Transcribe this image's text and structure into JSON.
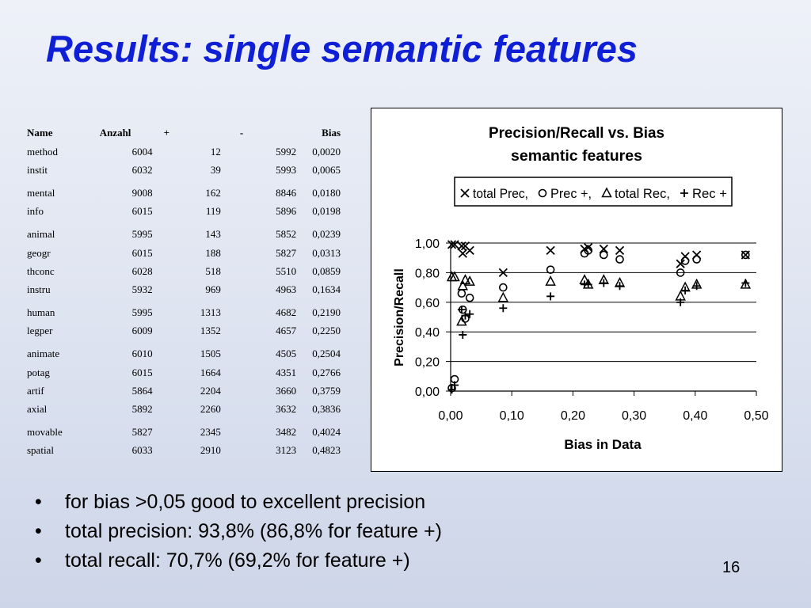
{
  "slide": {
    "title": "Results: single semantic features",
    "page_number": "16"
  },
  "table": {
    "headers": [
      "Name",
      "Anzahl",
      "+",
      "-",
      "Bias"
    ],
    "rows": [
      {
        "name": "method",
        "anzahl": "6004",
        "plus": "12",
        "minus": "5992",
        "bias": "0,0020"
      },
      {
        "name": "instit",
        "anzahl": "6032",
        "plus": "39",
        "minus": "5993",
        "bias": "0,0065"
      },
      {
        "name": "mental",
        "anzahl": "9008",
        "plus": "162",
        "minus": "8846",
        "bias": "0,0180"
      },
      {
        "name": "info",
        "anzahl": "6015",
        "plus": "119",
        "minus": "5896",
        "bias": "0,0198"
      },
      {
        "name": "animal",
        "anzahl": "5995",
        "plus": "143",
        "minus": "5852",
        "bias": "0,0239"
      },
      {
        "name": "geogr",
        "anzahl": "6015",
        "plus": "188",
        "minus": "5827",
        "bias": "0,0313"
      },
      {
        "name": "thconc",
        "anzahl": "6028",
        "plus": "518",
        "minus": "5510",
        "bias": "0,0859"
      },
      {
        "name": "instru",
        "anzahl": "5932",
        "plus": "969",
        "minus": "4963",
        "bias": "0,1634"
      },
      {
        "name": "human",
        "anzahl": "5995",
        "plus": "1313",
        "minus": "4682",
        "bias": "0,2190"
      },
      {
        "name": "legper",
        "anzahl": "6009",
        "plus": "1352",
        "minus": "4657",
        "bias": "0,2250"
      },
      {
        "name": "animate",
        "anzahl": "6010",
        "plus": "1505",
        "minus": "4505",
        "bias": "0,2504"
      },
      {
        "name": "potag",
        "anzahl": "6015",
        "plus": "1664",
        "minus": "4351",
        "bias": "0,2766"
      },
      {
        "name": "artif",
        "anzahl": "5864",
        "plus": "2204",
        "minus": "3660",
        "bias": "0,3759"
      },
      {
        "name": "axial",
        "anzahl": "5892",
        "plus": "2260",
        "minus": "3632",
        "bias": "0,3836"
      },
      {
        "name": "movable",
        "anzahl": "5827",
        "plus": "2345",
        "minus": "3482",
        "bias": "0,4024"
      },
      {
        "name": "spatial",
        "anzahl": "6033",
        "plus": "2910",
        "minus": "3123",
        "bias": "0,4823"
      }
    ]
  },
  "bullets": [
    "for bias >0,05 good to excellent precision",
    "total precision: 93,8% (86,8% for feature +)",
    "total recall:  70,7% (69,2% for feature +)"
  ],
  "chart_data": {
    "type": "scatter",
    "title": "Precision/Recall vs. Bias",
    "subtitle": "semantic features",
    "xlabel": "Bias in Data",
    "ylabel": "Precision/Recall",
    "xlim": [
      0,
      0.5
    ],
    "ylim": [
      0,
      1
    ],
    "x_ticks": [
      "0,00",
      "0,10",
      "0,20",
      "0,30",
      "0,40",
      "0,50"
    ],
    "y_ticks": [
      "0,00",
      "0,20",
      "0,40",
      "0,60",
      "0,80",
      "1,00"
    ],
    "grid": "horizontal",
    "legend_position": "top",
    "series": [
      {
        "name": "total Prec,",
        "marker": "x",
        "x": [
          0.002,
          0.0065,
          0.018,
          0.0198,
          0.0239,
          0.0313,
          0.0859,
          0.1634,
          0.219,
          0.225,
          0.2504,
          0.2766,
          0.3759,
          0.3836,
          0.4024,
          0.4823
        ],
        "y": [
          0.99,
          0.99,
          0.98,
          0.93,
          0.98,
          0.95,
          0.8,
          0.95,
          0.96,
          0.97,
          0.96,
          0.95,
          0.86,
          0.91,
          0.92,
          0.92
        ]
      },
      {
        "name": "Prec +,",
        "marker": "o",
        "x": [
          0.002,
          0.0065,
          0.018,
          0.0198,
          0.0239,
          0.0313,
          0.0859,
          0.1634,
          0.219,
          0.225,
          0.2504,
          0.2766,
          0.3759,
          0.3836,
          0.4024,
          0.4823
        ],
        "y": [
          0.02,
          0.08,
          0.66,
          0.55,
          0.49,
          0.63,
          0.7,
          0.82,
          0.93,
          0.95,
          0.92,
          0.89,
          0.8,
          0.88,
          0.89,
          0.92
        ]
      },
      {
        "name": "total Rec,",
        "marker": "triangle",
        "x": [
          0.002,
          0.0065,
          0.018,
          0.0198,
          0.0239,
          0.0313,
          0.0859,
          0.1634,
          0.219,
          0.225,
          0.2504,
          0.2766,
          0.3759,
          0.3836,
          0.4024,
          0.4823
        ],
        "y": [
          0.77,
          0.77,
          0.47,
          0.71,
          0.75,
          0.74,
          0.63,
          0.74,
          0.75,
          0.72,
          0.75,
          0.73,
          0.64,
          0.7,
          0.72,
          0.72
        ]
      },
      {
        "name": "Rec +",
        "marker": "plus",
        "x": [
          0.002,
          0.0065,
          0.018,
          0.0198,
          0.0239,
          0.0313,
          0.0859,
          0.1634,
          0.219,
          0.225,
          0.2504,
          0.2766,
          0.3759,
          0.3836,
          0.4024,
          0.4823
        ],
        "y": [
          0.01,
          0.04,
          0.55,
          0.38,
          0.51,
          0.52,
          0.56,
          0.64,
          0.72,
          0.72,
          0.73,
          0.71,
          0.6,
          0.68,
          0.71,
          0.73
        ]
      }
    ]
  }
}
